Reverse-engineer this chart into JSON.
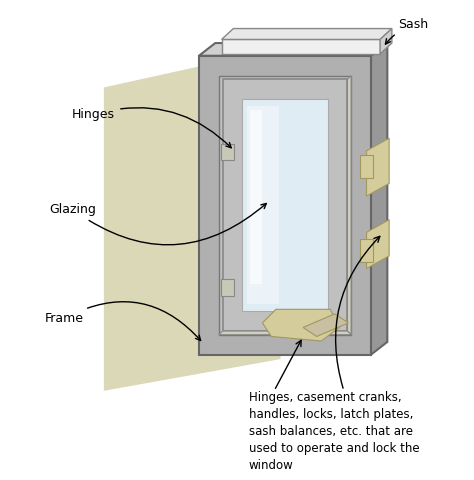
{
  "background_color": "#ffffff",
  "figure_size": [
    4.74,
    4.8
  ],
  "dpi": 100,
  "colors": {
    "wall_bg": "#d8d4b0",
    "frame_front": "#b0b0b0",
    "frame_side": "#989898",
    "frame_top": "#d0d0d0",
    "sash_frame": "#c0c0c0",
    "sash_top": "#e8e8e8",
    "sash_side": "#d0d0d0",
    "glass": "#e0ecf4",
    "glass_mid": "#cce0ee",
    "glass_highlight": "#f0f6fa",
    "inner_gap": "#c8c8c8",
    "hardware": "#d4cc9a",
    "hardware_edge": "#a09860"
  },
  "hardware_text": "Hinges, casement cranks,\nhandles, locks, latch plates,\nsash balances, etc. that are\nused to operate and lock the\nwindow"
}
